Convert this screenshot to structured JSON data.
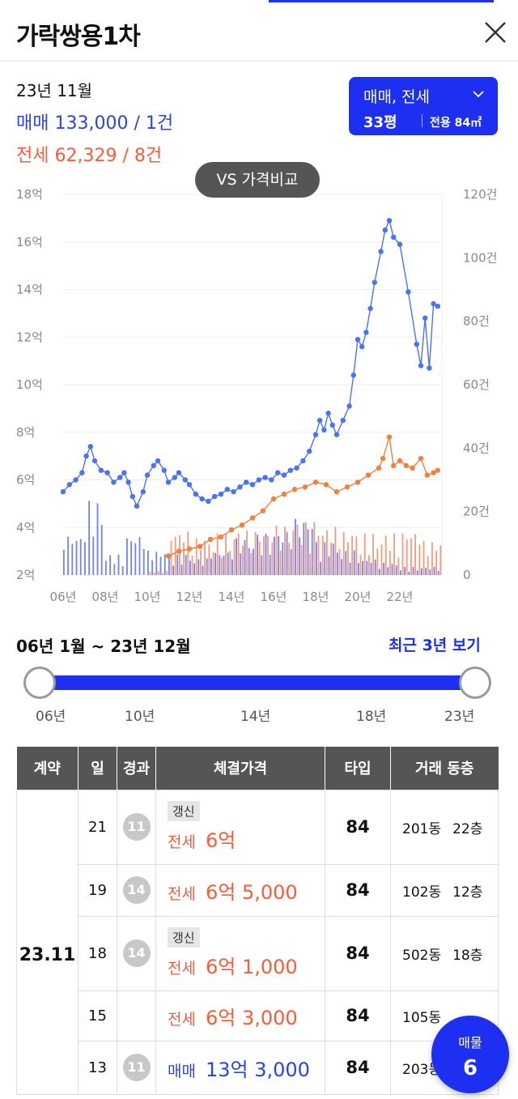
{
  "header": {
    "title": "가락쌍용1차"
  },
  "summary": {
    "year_month": "23년 11월",
    "sale": "매매 133,000 / 1건",
    "jeonse": "전세 62,329 / 8건"
  },
  "filter": {
    "type": "매매, 전세",
    "pyeong": "33평",
    "area": "전용 84㎡"
  },
  "compare_button": "VS 가격비교",
  "chart_data": {
    "type": "line",
    "x_ticks": [
      "06년",
      "08년",
      "10년",
      "12년",
      "14년",
      "16년",
      "18년",
      "20년",
      "22년"
    ],
    "y_left_ticks": [
      "2억",
      "4억",
      "6억",
      "8억",
      "10억",
      "12억",
      "14억",
      "16억",
      "18억"
    ],
    "y_right_ticks": [
      "0",
      "20건",
      "40건",
      "60건",
      "80건",
      "100건",
      "120건"
    ],
    "ylim_left": [
      2,
      18
    ],
    "ylim_right": [
      0,
      120
    ],
    "xlim": [
      2006,
      2024
    ],
    "series": [
      {
        "name": "매매",
        "color": "#4a72f5",
        "points": [
          [
            2006.0,
            5.5
          ],
          [
            2006.3,
            5.8
          ],
          [
            2006.6,
            6.0
          ],
          [
            2006.9,
            6.3
          ],
          [
            2007.1,
            7.0
          ],
          [
            2007.3,
            7.4
          ],
          [
            2007.5,
            6.8
          ],
          [
            2007.8,
            6.4
          ],
          [
            2008.1,
            6.3
          ],
          [
            2008.4,
            5.9
          ],
          [
            2008.7,
            6.1
          ],
          [
            2008.9,
            6.3
          ],
          [
            2009.1,
            5.9
          ],
          [
            2009.3,
            5.3
          ],
          [
            2009.5,
            4.9
          ],
          [
            2009.8,
            5.5
          ],
          [
            2010.0,
            6.2
          ],
          [
            2010.3,
            6.6
          ],
          [
            2010.5,
            6.8
          ],
          [
            2010.8,
            6.4
          ],
          [
            2011.0,
            5.9
          ],
          [
            2011.3,
            6.1
          ],
          [
            2011.5,
            6.3
          ],
          [
            2011.8,
            6.0
          ],
          [
            2012.0,
            5.8
          ],
          [
            2012.3,
            5.4
          ],
          [
            2012.6,
            5.2
          ],
          [
            2012.9,
            5.1
          ],
          [
            2013.2,
            5.3
          ],
          [
            2013.5,
            5.4
          ],
          [
            2013.8,
            5.6
          ],
          [
            2014.1,
            5.5
          ],
          [
            2014.4,
            5.7
          ],
          [
            2014.7,
            5.9
          ],
          [
            2015.0,
            5.8
          ],
          [
            2015.3,
            6.0
          ],
          [
            2015.6,
            6.1
          ],
          [
            2015.9,
            6.0
          ],
          [
            2016.2,
            6.3
          ],
          [
            2016.5,
            6.2
          ],
          [
            2016.8,
            6.4
          ],
          [
            2017.1,
            6.5
          ],
          [
            2017.4,
            6.8
          ],
          [
            2017.7,
            7.2
          ],
          [
            2018.0,
            7.9
          ],
          [
            2018.2,
            8.5
          ],
          [
            2018.4,
            8.1
          ],
          [
            2018.6,
            8.8
          ],
          [
            2018.8,
            8.3
          ],
          [
            2019.0,
            7.9
          ],
          [
            2019.3,
            8.5
          ],
          [
            2019.6,
            9.1
          ],
          [
            2019.8,
            10.4
          ],
          [
            2020.0,
            11.9
          ],
          [
            2020.2,
            11.6
          ],
          [
            2020.4,
            12.2
          ],
          [
            2020.6,
            13.2
          ],
          [
            2020.8,
            14.3
          ],
          [
            2021.1,
            15.6
          ],
          [
            2021.3,
            16.5
          ],
          [
            2021.5,
            16.9
          ],
          [
            2021.7,
            16.2
          ],
          [
            2022.0,
            15.9
          ],
          [
            2022.4,
            13.9
          ],
          [
            2022.8,
            11.7
          ],
          [
            2023.0,
            10.8
          ],
          [
            2023.2,
            12.8
          ],
          [
            2023.4,
            10.7
          ],
          [
            2023.6,
            13.4
          ],
          [
            2023.8,
            13.3
          ]
        ]
      },
      {
        "name": "전세",
        "color": "#f57f3c",
        "points": [
          [
            2011.0,
            2.8
          ],
          [
            2011.5,
            3.0
          ],
          [
            2012.0,
            3.1
          ],
          [
            2012.5,
            3.2
          ],
          [
            2013.0,
            3.5
          ],
          [
            2013.5,
            3.6
          ],
          [
            2014.0,
            3.9
          ],
          [
            2014.5,
            4.1
          ],
          [
            2015.0,
            4.4
          ],
          [
            2015.5,
            4.7
          ],
          [
            2016.0,
            5.2
          ],
          [
            2016.5,
            5.4
          ],
          [
            2017.0,
            5.6
          ],
          [
            2017.5,
            5.7
          ],
          [
            2018.0,
            5.9
          ],
          [
            2018.5,
            5.8
          ],
          [
            2019.0,
            5.5
          ],
          [
            2019.5,
            5.7
          ],
          [
            2020.0,
            5.9
          ],
          [
            2020.5,
            6.2
          ],
          [
            2021.0,
            6.5
          ],
          [
            2021.2,
            6.9
          ],
          [
            2021.5,
            7.8
          ],
          [
            2021.7,
            6.6
          ],
          [
            2022.0,
            6.8
          ],
          [
            2022.3,
            6.6
          ],
          [
            2022.6,
            6.5
          ],
          [
            2023.0,
            6.9
          ],
          [
            2023.3,
            6.2
          ],
          [
            2023.6,
            6.3
          ],
          [
            2023.8,
            6.4
          ]
        ]
      }
    ],
    "volume": [
      {
        "year": 2006,
        "buy": 10,
        "rent": 0
      },
      {
        "year": 2007,
        "buy": 18,
        "rent": 0
      },
      {
        "year": 2008,
        "buy": 5,
        "rent": 0
      },
      {
        "year": 2009,
        "buy": 10,
        "rent": 0
      },
      {
        "year": 2010,
        "buy": 6,
        "rent": 1
      },
      {
        "year": 2011,
        "buy": 5,
        "rent": 12
      },
      {
        "year": 2012,
        "buy": 4,
        "rent": 10
      },
      {
        "year": 2013,
        "buy": 6,
        "rent": 11
      },
      {
        "year": 2014,
        "buy": 9,
        "rent": 12
      },
      {
        "year": 2015,
        "buy": 10,
        "rent": 12
      },
      {
        "year": 2016,
        "buy": 11,
        "rent": 13
      },
      {
        "year": 2017,
        "buy": 14,
        "rent": 14
      },
      {
        "year": 2018,
        "buy": 8,
        "rent": 13
      },
      {
        "year": 2019,
        "buy": 6,
        "rent": 12
      },
      {
        "year": 2020,
        "buy": 4,
        "rent": 11
      },
      {
        "year": 2021,
        "buy": 3,
        "rent": 11
      },
      {
        "year": 2022,
        "buy": 2,
        "rent": 12
      },
      {
        "year": 2023,
        "buy": 2,
        "rent": 9
      }
    ]
  },
  "range": {
    "label": "06년 1월 ~ 23년 12월",
    "recent_button": "최근 3년 보기",
    "ticks": [
      "06년",
      "10년",
      "14년",
      "18년",
      "23년"
    ]
  },
  "table": {
    "headers": [
      "계약",
      "일",
      "경과",
      "체결가격",
      "타입",
      "거래 동층"
    ],
    "group_label": "23.11",
    "rows": [
      {
        "day": "21",
        "elapsed": "11",
        "renew": "갱신",
        "kind": "전세",
        "price": "6억",
        "type": "84",
        "dong": "201동",
        "floor": "22층"
      },
      {
        "day": "19",
        "elapsed": "14",
        "renew": "",
        "kind": "전세",
        "price": "6억 5,000",
        "type": "84",
        "dong": "102동",
        "floor": "12층"
      },
      {
        "day": "18",
        "elapsed": "14",
        "renew": "갱신",
        "kind": "전세",
        "price": "6억 1,000",
        "type": "84",
        "dong": "502동",
        "floor": "18층"
      },
      {
        "day": "15",
        "elapsed": "",
        "renew": "",
        "kind": "전세",
        "price": "6억 3,000",
        "type": "84",
        "dong": "105동",
        "floor": ""
      },
      {
        "day": "13",
        "elapsed": "11",
        "renew": "",
        "kind": "매매",
        "price": "13억 3,000",
        "type": "84",
        "dong": "203동",
        "floor": ""
      }
    ]
  },
  "fab": {
    "label": "매물",
    "count": "6"
  }
}
